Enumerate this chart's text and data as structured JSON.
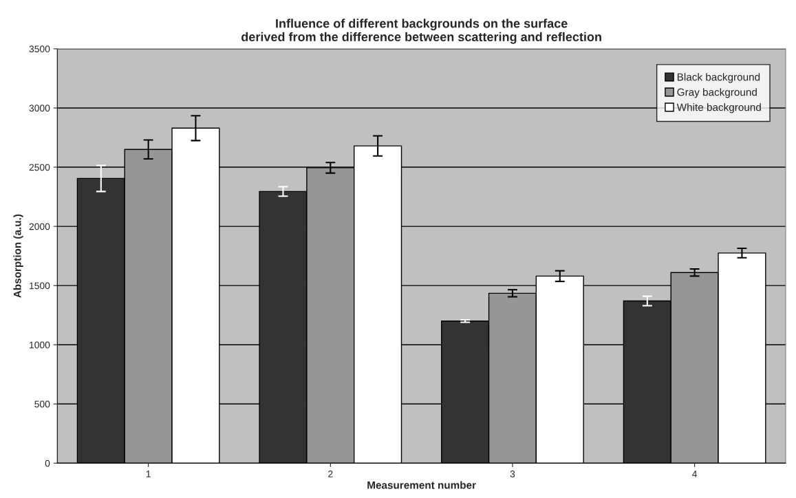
{
  "chart_data": {
    "type": "bar",
    "title": "Influence of different backgrounds on the surface\nderived from the difference between scattering and reflection",
    "xlabel": "Measurement number",
    "ylabel": "Absorption (a.u.)",
    "categories": [
      "1",
      "2",
      "3",
      "4"
    ],
    "series": [
      {
        "name": "Black background",
        "color": "#333333",
        "values": [
          2405,
          2295,
          1200,
          1370
        ],
        "errors": [
          110,
          40,
          10,
          40
        ]
      },
      {
        "name": "Gray background",
        "color": "#969696",
        "values": [
          2650,
          2495,
          1435,
          1610
        ],
        "errors": [
          80,
          45,
          30,
          30
        ]
      },
      {
        "name": "White background",
        "color": "#ffffff",
        "values": [
          2830,
          2680,
          1580,
          1775
        ],
        "errors": [
          105,
          85,
          45,
          40
        ]
      }
    ],
    "ylim": [
      0,
      3500
    ],
    "yticks": [
      0,
      500,
      1000,
      1500,
      2000,
      2500,
      3000,
      3500
    ],
    "grid": "y",
    "legend": "top right"
  }
}
